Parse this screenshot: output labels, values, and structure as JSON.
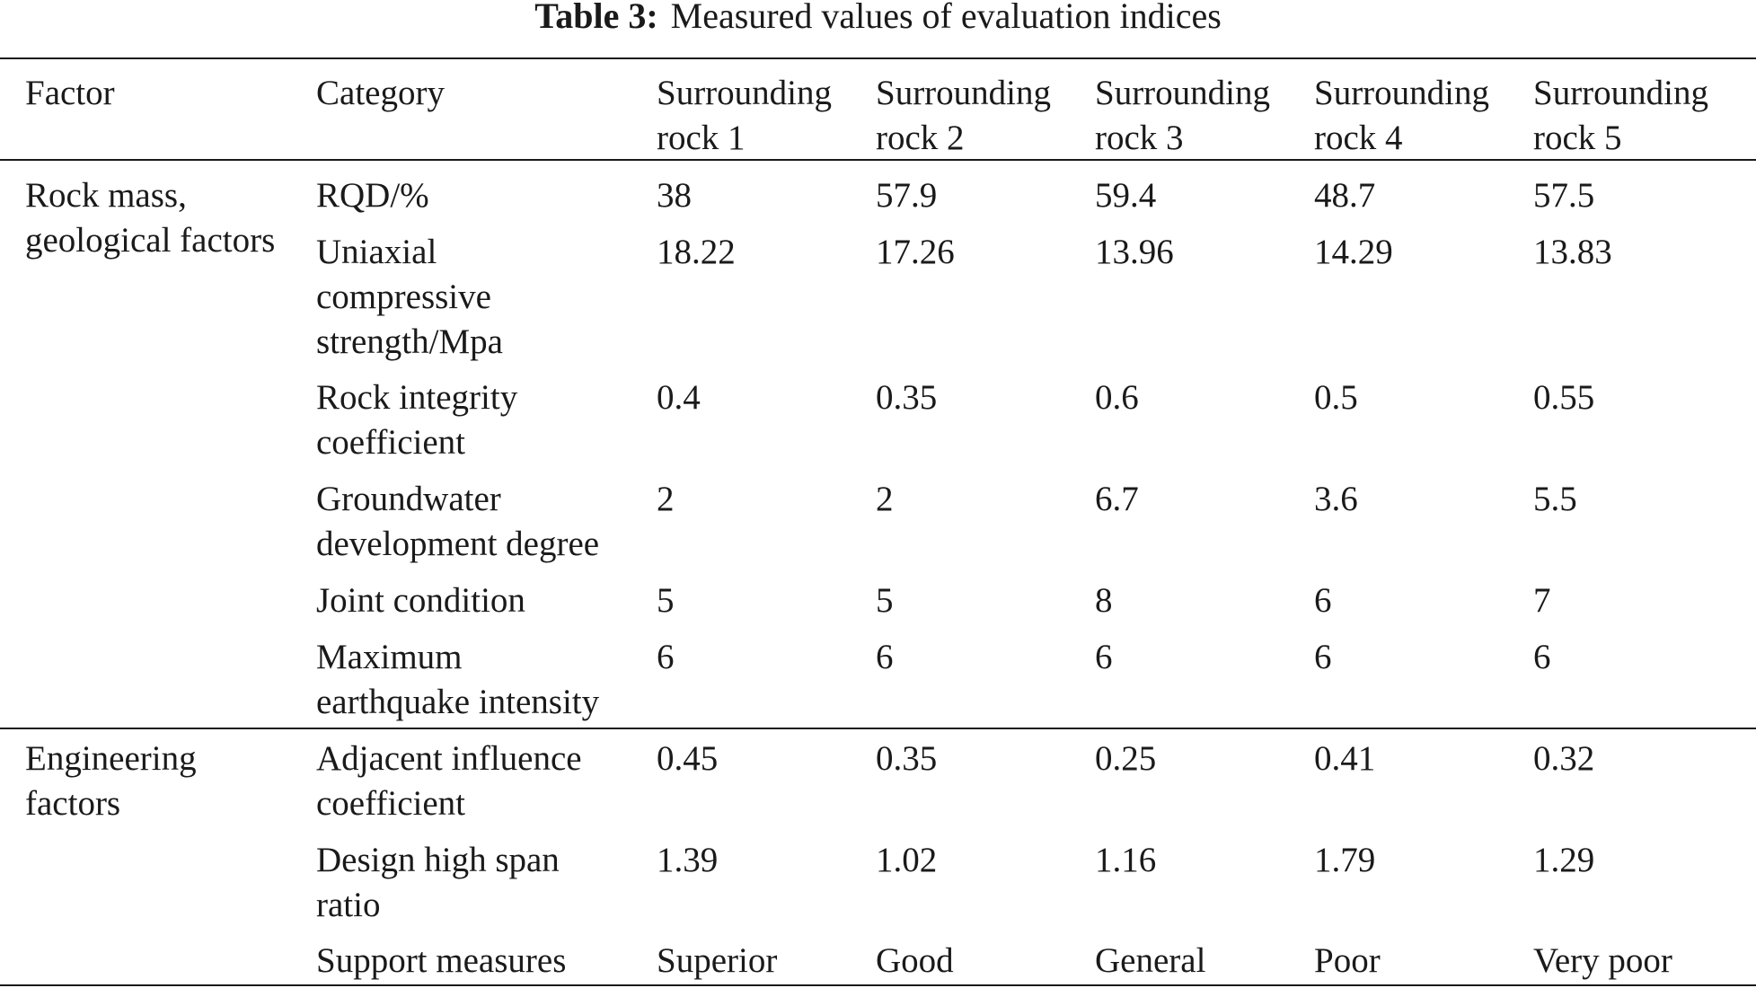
{
  "caption": {
    "label": "Table 3:",
    "title": "Measured values of evaluation indices"
  },
  "header": {
    "factor": "Factor",
    "category": "Category",
    "rocks": [
      {
        "line1": "Surrounding",
        "line2": "rock 1"
      },
      {
        "line1": "Surrounding",
        "line2": "rock 2"
      },
      {
        "line1": "Surrounding",
        "line2": "rock 3"
      },
      {
        "line1": "Surrounding",
        "line2": "rock 4"
      },
      {
        "line1": "Surrounding",
        "line2": "rock 5"
      }
    ]
  },
  "groups": [
    {
      "factor_lines": [
        "Rock mass,",
        "geological factors"
      ],
      "rows": [
        {
          "category_lines": [
            "RQD/%"
          ],
          "values": [
            "38",
            "57.9",
            "59.4",
            "48.7",
            "57.5"
          ]
        },
        {
          "category_lines": [
            "Uniaxial",
            "compressive",
            "strength/Mpa"
          ],
          "values": [
            "18.22",
            "17.26",
            "13.96",
            "14.29",
            "13.83"
          ]
        },
        {
          "category_lines": [
            "Rock integrity",
            "coefficient"
          ],
          "values": [
            "0.4",
            "0.35",
            "0.6",
            "0.5",
            "0.55"
          ]
        },
        {
          "category_lines": [
            "Groundwater",
            "development degree"
          ],
          "values": [
            "2",
            "2",
            "6.7",
            "3.6",
            "5.5"
          ]
        },
        {
          "category_lines": [
            "Joint condition"
          ],
          "values": [
            "5",
            "5",
            "8",
            "6",
            "7"
          ]
        },
        {
          "category_lines": [
            "Maximum",
            "earthquake intensity"
          ],
          "values": [
            "6",
            "6",
            "6",
            "6",
            "6"
          ]
        }
      ]
    },
    {
      "factor_lines": [
        "Engineering",
        "factors"
      ],
      "rows": [
        {
          "category_lines": [
            "Adjacent influence",
            "coefficient"
          ],
          "values": [
            "0.45",
            "0.35",
            "0.25",
            "0.41",
            "0.32"
          ]
        },
        {
          "category_lines": [
            "Design high span",
            "ratio"
          ],
          "values": [
            "1.39",
            "1.02",
            "1.16",
            "1.79",
            "1.29"
          ]
        },
        {
          "category_lines": [
            "Support measures"
          ],
          "values": [
            "Superior",
            "Good",
            "General",
            "Poor",
            "Very poor"
          ]
        }
      ]
    }
  ]
}
